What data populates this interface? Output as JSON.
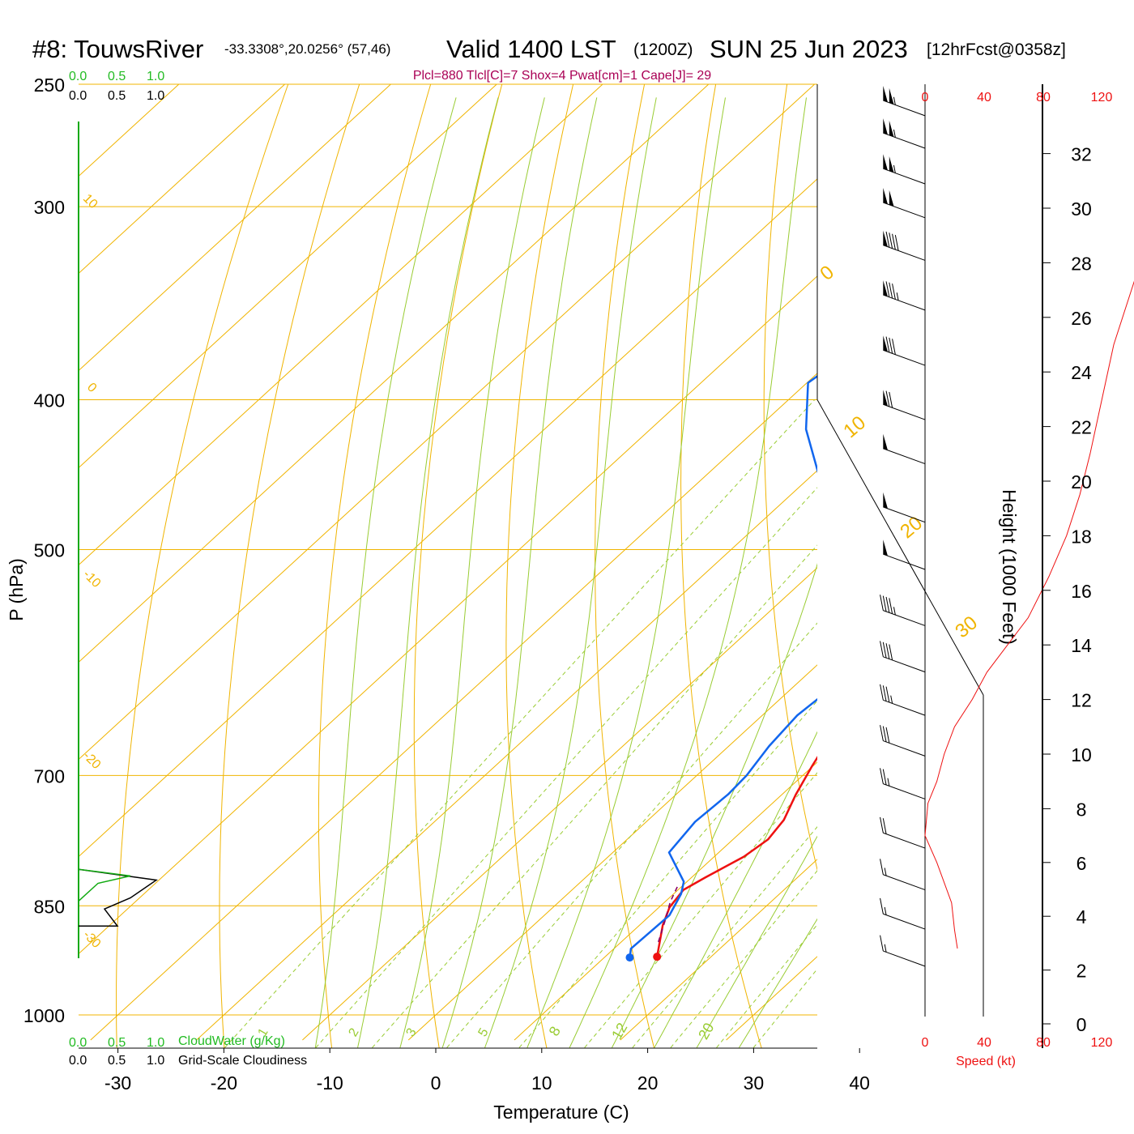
{
  "header": {
    "station": "#8: TouwsRiver",
    "coords": "-33.3308°,20.0256° (57,46)",
    "valid": "Valid 1400 LST",
    "utc": "(1200Z)",
    "date": "SUN 25 Jun 2023",
    "fcst": "[12hrFcst@0358z]",
    "indices": "Plcl=880 Tlcl[C]=7 Shox=4 Pwat[cm]=1 Cape[J]= 29"
  },
  "colors": {
    "temperature": "#ee1111",
    "dewpoint": "#1166ee",
    "isotherm": "#f0b400",
    "dry_adiabat": "#f0b400",
    "moist_adiabat": "#99cc33",
    "mixing_ratio": "#99cc33",
    "cloud_water": "#11aa11",
    "parcel": "#880066",
    "wind_speed": "#ee1111",
    "indices": "#aa0055"
  },
  "chart_data": [
    {
      "type": "line",
      "subtype": "skew-T log-P sounding",
      "xlabel": "Temperature (C)",
      "ylabel": "P (hPa)",
      "y2label": "Height (1000 Feet)",
      "x_ticks": [
        "-30",
        "-20",
        "-10",
        "0",
        "10",
        "20",
        "30",
        "40"
      ],
      "x_tick_values": [
        -30,
        -20,
        -10,
        0,
        10,
        20,
        30,
        40
      ],
      "y_ticks": [
        "250",
        "300",
        "400",
        "500",
        "700",
        "850",
        "1000"
      ],
      "y_tick_values": [
        250,
        300,
        400,
        500,
        700,
        850,
        1000
      ],
      "y2_ticks": [
        "0",
        "2",
        "4",
        "6",
        "8",
        "10",
        "12",
        "14",
        "16",
        "18",
        "20",
        "22",
        "24",
        "26",
        "28",
        "30",
        "32"
      ],
      "y2_tick_values": [
        0,
        2,
        4,
        6,
        8,
        10,
        12,
        14,
        16,
        18,
        20,
        22,
        24,
        26,
        28,
        30,
        32
      ],
      "ylim": [
        250,
        1000
      ],
      "y_scale": "log",
      "isotherm_labels": [
        "10",
        "0",
        "-10",
        "-20",
        "-30",
        "0",
        "10",
        "20",
        "30"
      ],
      "isotherm_label_values": [
        10,
        0,
        -10,
        -20,
        -30,
        0,
        10,
        20,
        30
      ],
      "moist_adiabat_labels": [
        "8",
        "12",
        "20"
      ],
      "mixing_ratio_labels": [
        "1",
        "2",
        "3",
        "5"
      ],
      "series": [
        {
          "role": "temperature",
          "points": [
            [
              14.9,
              917
            ],
            [
              13.5,
              895
            ],
            [
              12.2,
              875
            ],
            [
              11,
              852
            ],
            [
              10.5,
              830
            ],
            [
              11.3,
              815
            ],
            [
              12.8,
              790
            ],
            [
              13.3,
              770
            ],
            [
              12.8,
              748
            ],
            [
              11.3,
              720
            ],
            [
              9.9,
              690
            ],
            [
              8.6,
              660
            ],
            [
              7.3,
              630
            ],
            [
              6.1,
              600
            ],
            [
              5.3,
              575
            ],
            [
              4.7,
              545
            ],
            [
              4.6,
              515
            ],
            [
              4.8,
              480
            ],
            [
              4.7,
              450
            ],
            [
              4.2,
              420
            ],
            [
              3.2,
              390
            ],
            [
              1.9,
              360
            ],
            [
              0.3,
              330
            ],
            [
              -0.9,
              310
            ],
            [
              -1.5,
              290
            ],
            [
              -1.6,
              270
            ],
            [
              -1.4,
              260
            ]
          ]
        },
        {
          "role": "dewpoint",
          "points": [
            [
              12.4,
              918
            ],
            [
              11.6,
              906
            ],
            [
              11.7,
              885
            ],
            [
              11.8,
              862
            ],
            [
              10.7,
              835
            ],
            [
              9.7,
              820
            ],
            [
              5.3,
              785
            ],
            [
              4.6,
              750
            ],
            [
              4.9,
              720
            ],
            [
              4.7,
              700
            ],
            [
              3.8,
              670
            ],
            [
              3.3,
              640
            ],
            [
              3.8,
              610
            ],
            [
              4,
              590
            ],
            [
              2.5,
              565
            ],
            [
              -1.5,
              535
            ],
            [
              -5.7,
              505
            ],
            [
              -10.9,
              478
            ],
            [
              -18.9,
              450
            ],
            [
              -25.3,
              418
            ],
            [
              -29.9,
              390
            ],
            [
              -28.6,
              365
            ],
            [
              -24.2,
              340
            ],
            [
              -21.6,
              320
            ],
            [
              -20.3,
              305
            ],
            [
              -20.3,
              285
            ],
            [
              -20.4,
              270
            ],
            [
              -20.2,
              262
            ]
          ]
        },
        {
          "role": "parcel",
          "points": [
            [
              13.5,
              897
            ],
            [
              12,
              870
            ],
            [
              10.5,
              845
            ],
            [
              9.6,
              826
            ]
          ]
        }
      ],
      "wind_barbs": [
        {
          "p": 262,
          "speed_kt": 105
        },
        {
          "p": 275,
          "speed_kt": 105
        },
        {
          "p": 290,
          "speed_kt": 105
        },
        {
          "p": 305,
          "speed_kt": 100
        },
        {
          "p": 325,
          "speed_kt": 90
        },
        {
          "p": 350,
          "speed_kt": 85
        },
        {
          "p": 380,
          "speed_kt": 80
        },
        {
          "p": 412,
          "speed_kt": 70
        },
        {
          "p": 440,
          "speed_kt": 50
        },
        {
          "p": 480,
          "speed_kt": 50
        },
        {
          "p": 515,
          "speed_kt": 50
        },
        {
          "p": 560,
          "speed_kt": 45
        },
        {
          "p": 600,
          "speed_kt": 40
        },
        {
          "p": 640,
          "speed_kt": 35
        },
        {
          "p": 680,
          "speed_kt": 30
        },
        {
          "p": 725,
          "speed_kt": 25
        },
        {
          "p": 780,
          "speed_kt": 20
        },
        {
          "p": 830,
          "speed_kt": 15
        },
        {
          "p": 880,
          "speed_kt": 15
        },
        {
          "p": 930,
          "speed_kt": 15
        }
      ],
      "wind_speed_profile": {
        "x_ticks": [
          "0",
          "40",
          "80",
          "120"
        ],
        "x_tick_values": [
          0,
          40,
          80,
          120
        ],
        "label": "Speed (kt)",
        "points": [
          [
            22,
            2.8
          ],
          [
            20,
            3.5
          ],
          [
            18,
            4.5
          ],
          [
            8,
            6
          ],
          [
            0,
            7
          ],
          [
            2,
            8.2
          ],
          [
            8,
            9
          ],
          [
            13,
            10
          ],
          [
            20,
            11
          ],
          [
            32,
            12
          ],
          [
            42,
            13
          ],
          [
            56,
            14
          ],
          [
            70,
            15
          ],
          [
            84,
            16.5
          ],
          [
            96,
            18
          ],
          [
            105,
            19.5
          ],
          [
            112,
            21
          ],
          [
            120,
            23
          ],
          [
            128,
            25
          ],
          [
            140,
            27
          ],
          [
            152,
            29
          ],
          [
            168,
            31
          ],
          [
            180,
            32.5
          ]
        ]
      },
      "cloud_panel": {
        "top_labels": [
          "0.0",
          "0.5",
          "1.0"
        ],
        "bottom_labels": [
          "0.0",
          "0.5",
          "1.0"
        ],
        "cloud_water_label": "CloudWater (g/Kg)",
        "cloudiness_label": "Grid-Scale Cloudiness",
        "cloudiness_points": [
          [
            0,
            876
          ],
          [
            0.6,
            876
          ],
          [
            0.4,
            854
          ],
          [
            0.8,
            840
          ],
          [
            1.2,
            818
          ],
          [
            0,
            805
          ]
        ],
        "cloud_water_points": [
          [
            0,
            844
          ],
          [
            0.3,
            822
          ],
          [
            0.8,
            813
          ],
          [
            0,
            805
          ]
        ]
      }
    }
  ]
}
